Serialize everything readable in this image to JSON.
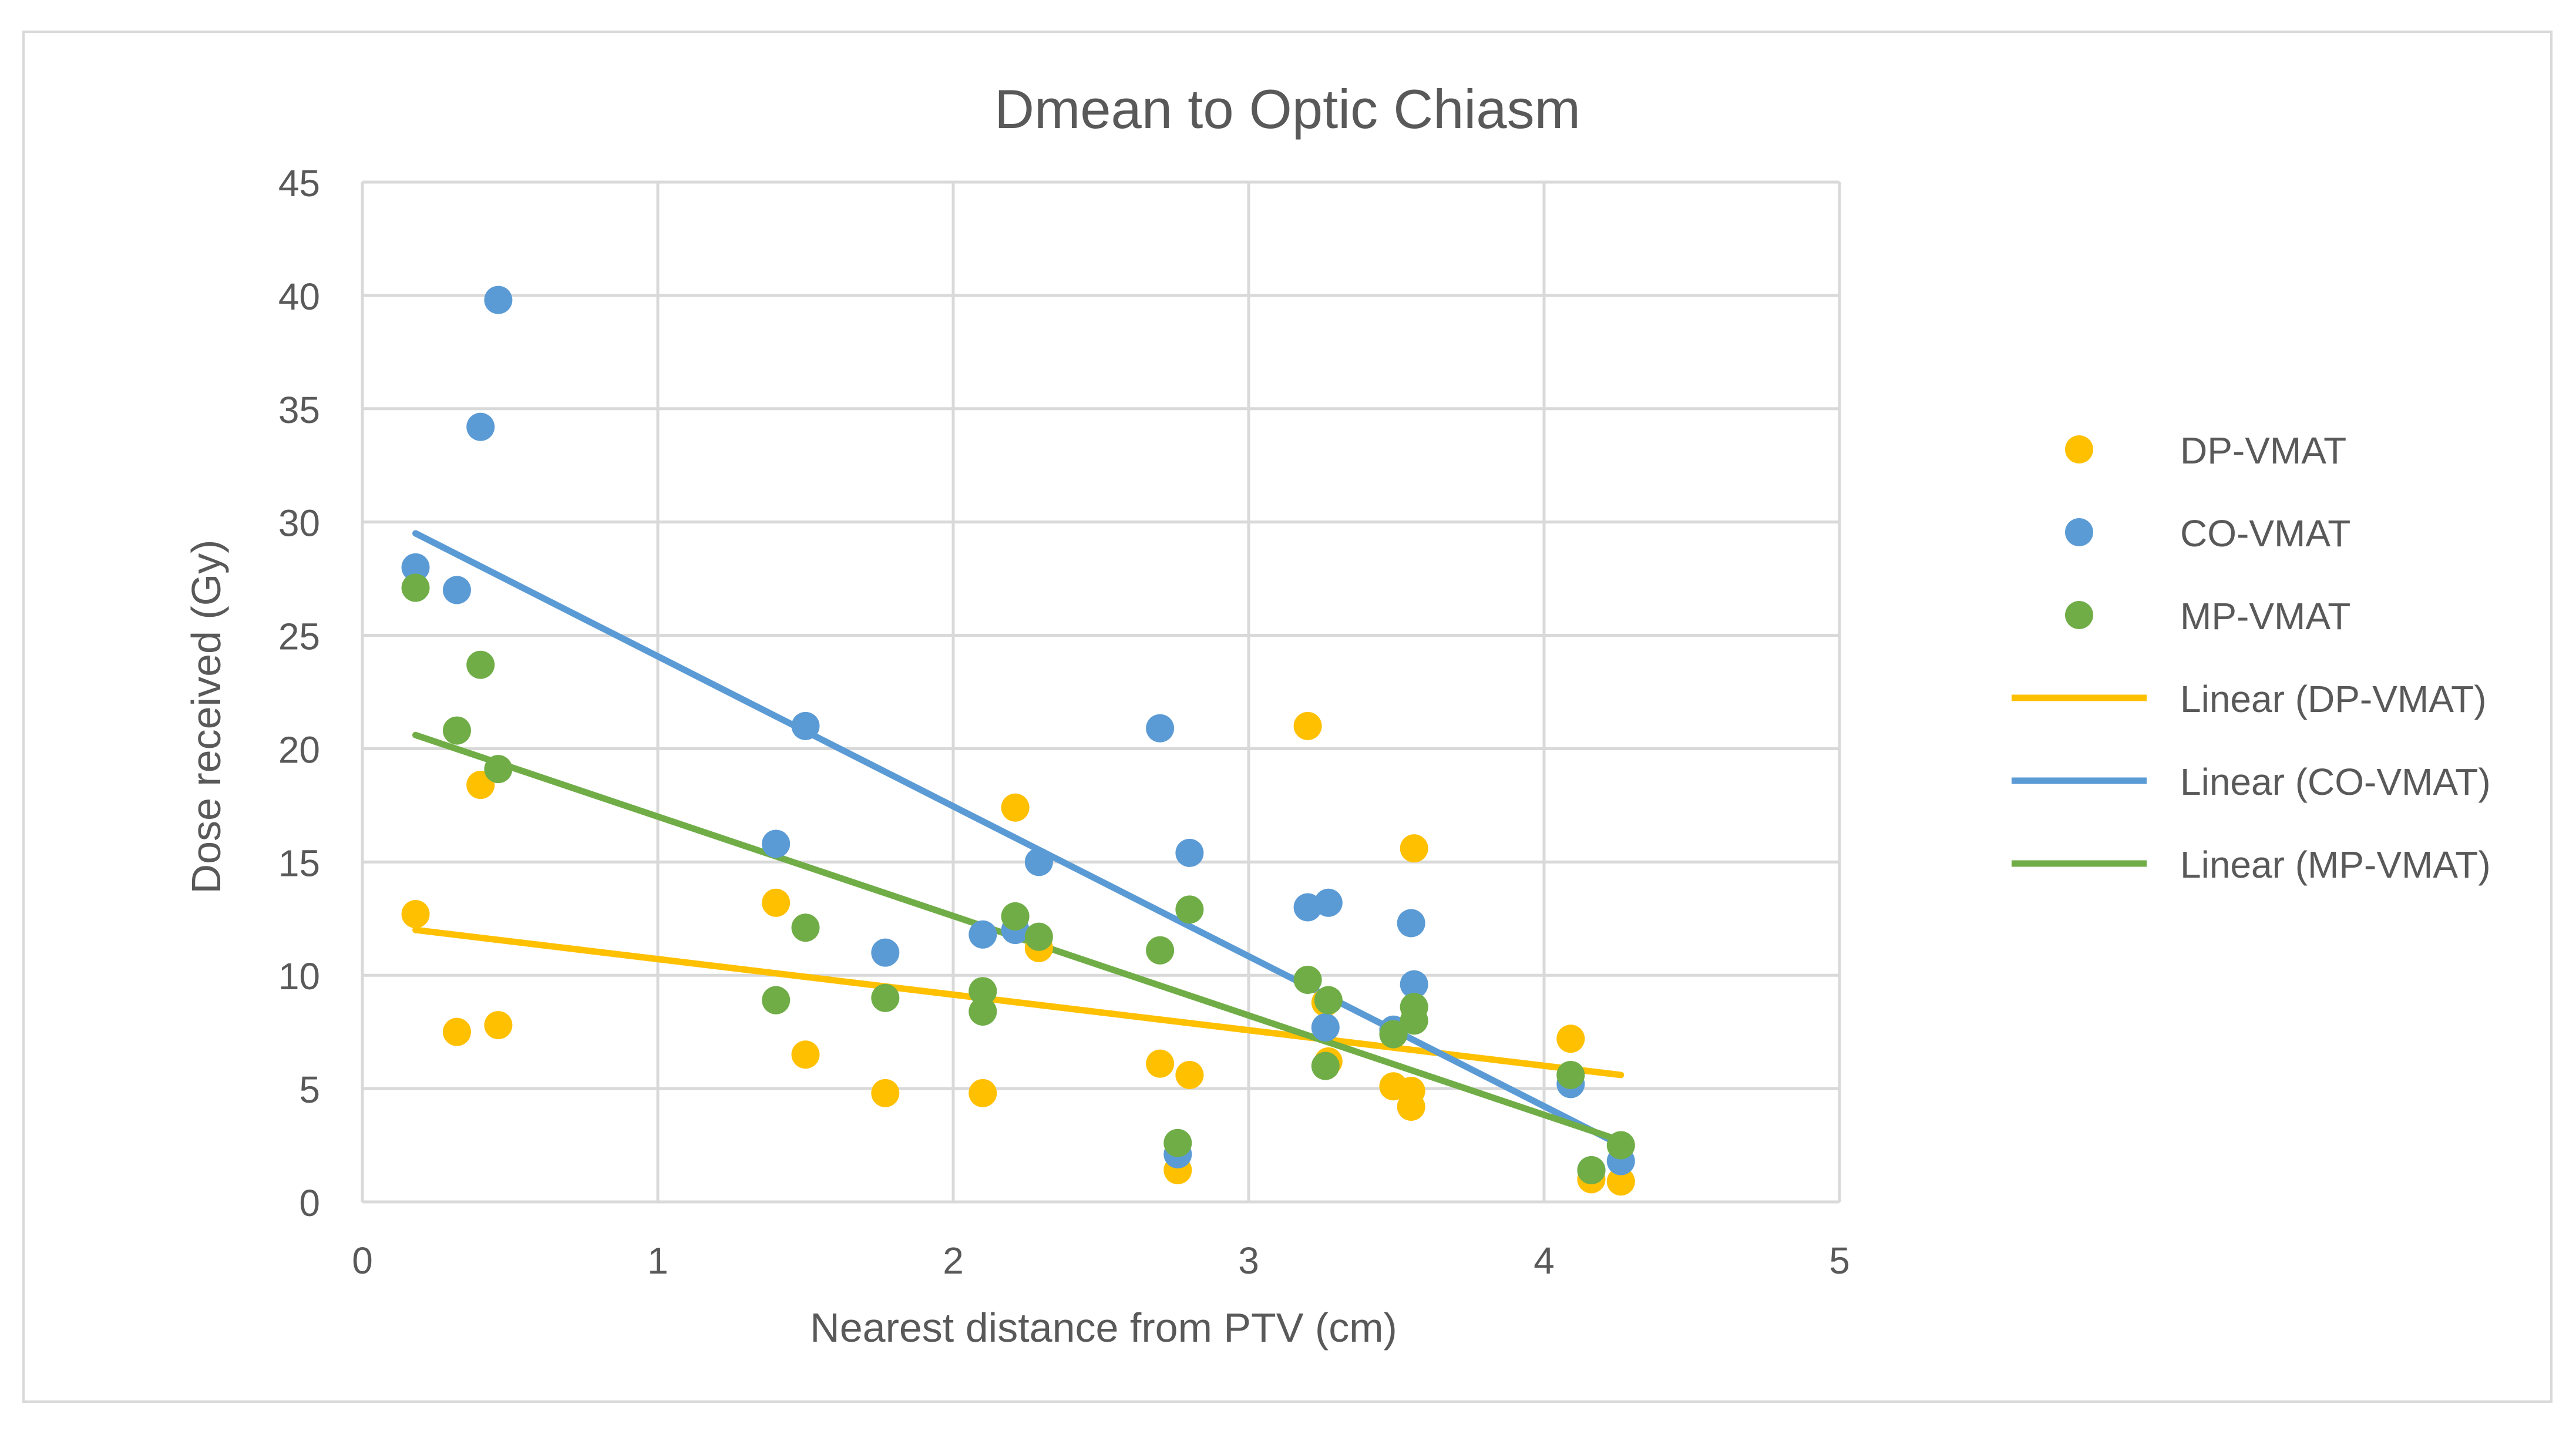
{
  "chart_data": {
    "type": "scatter",
    "title": "Dmean to Optic Chiasm",
    "xlabel": "Nearest distance from PTV (cm)",
    "ylabel": "Dose received (Gy)",
    "xlim": [
      0,
      5
    ],
    "ylim": [
      0,
      45
    ],
    "xticks": [
      0,
      1,
      2,
      3,
      4,
      5
    ],
    "yticks": [
      0,
      5,
      10,
      15,
      20,
      25,
      30,
      35,
      40,
      45
    ],
    "grid": true,
    "legend_position": "right",
    "colors": {
      "DP-VMAT": "#FFC000",
      "CO-VMAT": "#5B9BD5",
      "MP-VMAT": "#70AD47",
      "grid": "#d9d9d9",
      "text": "#595959"
    },
    "series": [
      {
        "name": "DP-VMAT",
        "points": [
          [
            0.18,
            12.7
          ],
          [
            0.32,
            7.5
          ],
          [
            0.4,
            18.4
          ],
          [
            0.46,
            7.8
          ],
          [
            1.4,
            13.2
          ],
          [
            1.5,
            6.5
          ],
          [
            1.77,
            4.8
          ],
          [
            2.1,
            4.8
          ],
          [
            2.21,
            17.4
          ],
          [
            2.29,
            11.2
          ],
          [
            2.7,
            6.1
          ],
          [
            2.76,
            1.4
          ],
          [
            2.8,
            5.6
          ],
          [
            3.2,
            21.0
          ],
          [
            3.26,
            8.8
          ],
          [
            3.27,
            6.2
          ],
          [
            3.49,
            5.1
          ],
          [
            3.55,
            4.2
          ],
          [
            3.55,
            4.9
          ],
          [
            3.56,
            15.6
          ],
          [
            4.09,
            7.2
          ],
          [
            4.16,
            1.0
          ],
          [
            4.26,
            0.9
          ]
        ]
      },
      {
        "name": "CO-VMAT",
        "points": [
          [
            0.18,
            28.0
          ],
          [
            0.32,
            27.0
          ],
          [
            0.4,
            34.2
          ],
          [
            0.46,
            39.8
          ],
          [
            1.4,
            15.8
          ],
          [
            1.5,
            21.0
          ],
          [
            1.77,
            11.0
          ],
          [
            2.1,
            11.8
          ],
          [
            2.21,
            12.0
          ],
          [
            2.29,
            15.0
          ],
          [
            2.7,
            20.9
          ],
          [
            2.76,
            2.1
          ],
          [
            2.8,
            15.4
          ],
          [
            3.2,
            13.0
          ],
          [
            3.26,
            7.7
          ],
          [
            3.27,
            13.2
          ],
          [
            3.49,
            7.6
          ],
          [
            3.55,
            12.3
          ],
          [
            3.56,
            9.6
          ],
          [
            4.09,
            5.2
          ],
          [
            4.16,
            1.4
          ],
          [
            4.26,
            1.8
          ]
        ]
      },
      {
        "name": "MP-VMAT",
        "points": [
          [
            0.18,
            27.1
          ],
          [
            0.32,
            20.8
          ],
          [
            0.4,
            23.7
          ],
          [
            0.46,
            19.1
          ],
          [
            1.4,
            8.9
          ],
          [
            1.5,
            12.1
          ],
          [
            1.77,
            9.0
          ],
          [
            2.1,
            9.3
          ],
          [
            2.1,
            8.4
          ],
          [
            2.21,
            12.6
          ],
          [
            2.29,
            11.7
          ],
          [
            2.7,
            11.1
          ],
          [
            2.76,
            2.6
          ],
          [
            2.8,
            12.9
          ],
          [
            3.2,
            9.8
          ],
          [
            3.26,
            6.0
          ],
          [
            3.27,
            8.9
          ],
          [
            3.49,
            7.4
          ],
          [
            3.56,
            8.6
          ],
          [
            3.56,
            8.0
          ],
          [
            4.09,
            5.6
          ],
          [
            4.16,
            1.4
          ],
          [
            4.26,
            2.5
          ]
        ]
      }
    ],
    "trendlines": [
      {
        "name": "Linear (DP-VMAT)",
        "series": "DP-VMAT",
        "x": [
          0.18,
          4.26
        ],
        "y": [
          12.0,
          5.6
        ]
      },
      {
        "name": "Linear (CO-VMAT)",
        "series": "CO-VMAT",
        "x": [
          0.18,
          4.26
        ],
        "y": [
          29.5,
          2.5
        ]
      },
      {
        "name": "Linear (MP-VMAT)",
        "series": "MP-VMAT",
        "x": [
          0.18,
          4.26
        ],
        "y": [
          20.6,
          2.7
        ]
      }
    ],
    "legend": [
      {
        "label": "DP-VMAT",
        "kind": "marker",
        "series": "DP-VMAT"
      },
      {
        "label": "CO-VMAT",
        "kind": "marker",
        "series": "CO-VMAT"
      },
      {
        "label": "MP-VMAT",
        "kind": "marker",
        "series": "MP-VMAT"
      },
      {
        "label": "Linear (DP-VMAT)",
        "kind": "line",
        "series": "DP-VMAT"
      },
      {
        "label": "Linear (CO-VMAT)",
        "kind": "line",
        "series": "CO-VMAT"
      },
      {
        "label": "Linear (MP-VMAT)",
        "kind": "line",
        "series": "MP-VMAT"
      }
    ]
  }
}
